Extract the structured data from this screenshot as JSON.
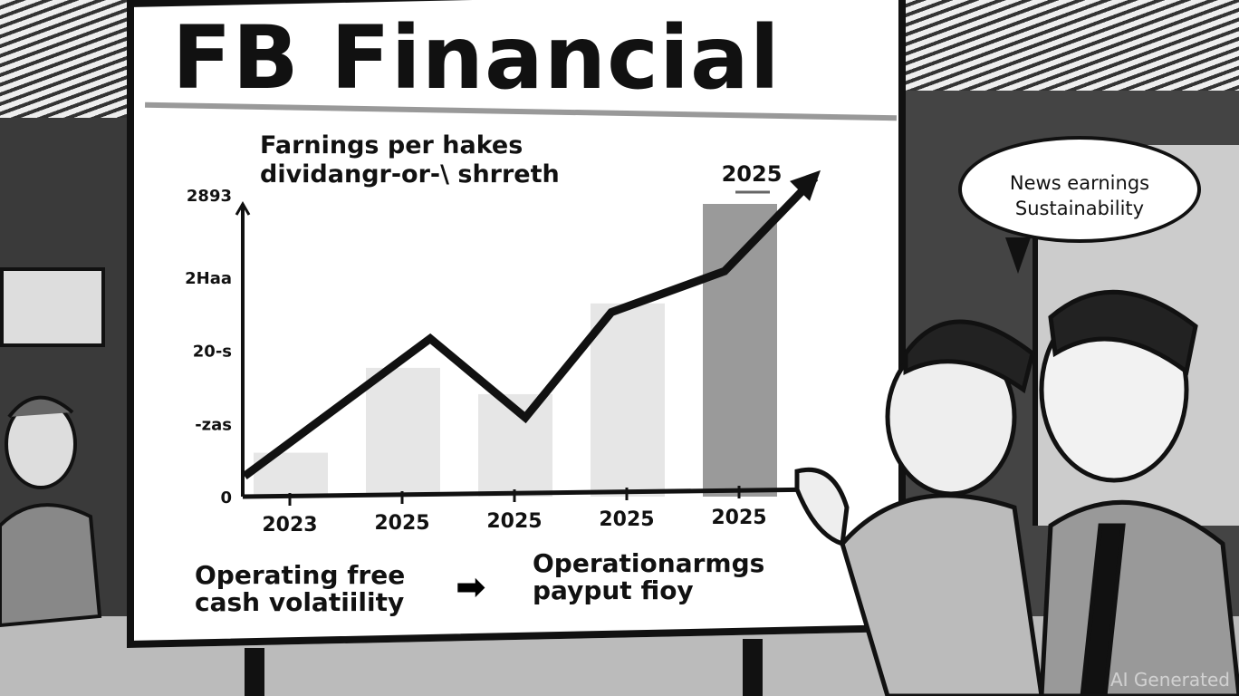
{
  "board": {
    "title": "FB Financial",
    "subtitle_line1": "Farnings per hakes",
    "subtitle_line2": "dividangr-or-\\ shrreth",
    "bottom_left_line1": "Operating free",
    "bottom_left_line2": "cash volatiility",
    "arrow_icon": "right-arrow",
    "bottom_right_line1": "Operationarmgs",
    "bottom_right_line2": "payput fioy"
  },
  "speech_bubble": {
    "line1": "News earnings",
    "line2": "Sustainability"
  },
  "watermark": "AI Generated",
  "chart_data": {
    "type": "bar",
    "title": "",
    "y_tick_labels": [
      "2893",
      "2Haa",
      "20-s",
      "-zas",
      "0"
    ],
    "categories": [
      "2023",
      "2025",
      "2025",
      "2025",
      "2025"
    ],
    "bar_values_fraction_of_axis": [
      0.15,
      0.44,
      0.35,
      0.66,
      1.0
    ],
    "line_values_fraction_of_axis": [
      0.07,
      0.54,
      0.27,
      0.63,
      0.77,
      1.09
    ],
    "highlight_label": "2025",
    "grid": false,
    "colors": {
      "bars": "#e6e6e6",
      "highlight_bar": "#9a9a9a",
      "line": "#111111"
    }
  }
}
